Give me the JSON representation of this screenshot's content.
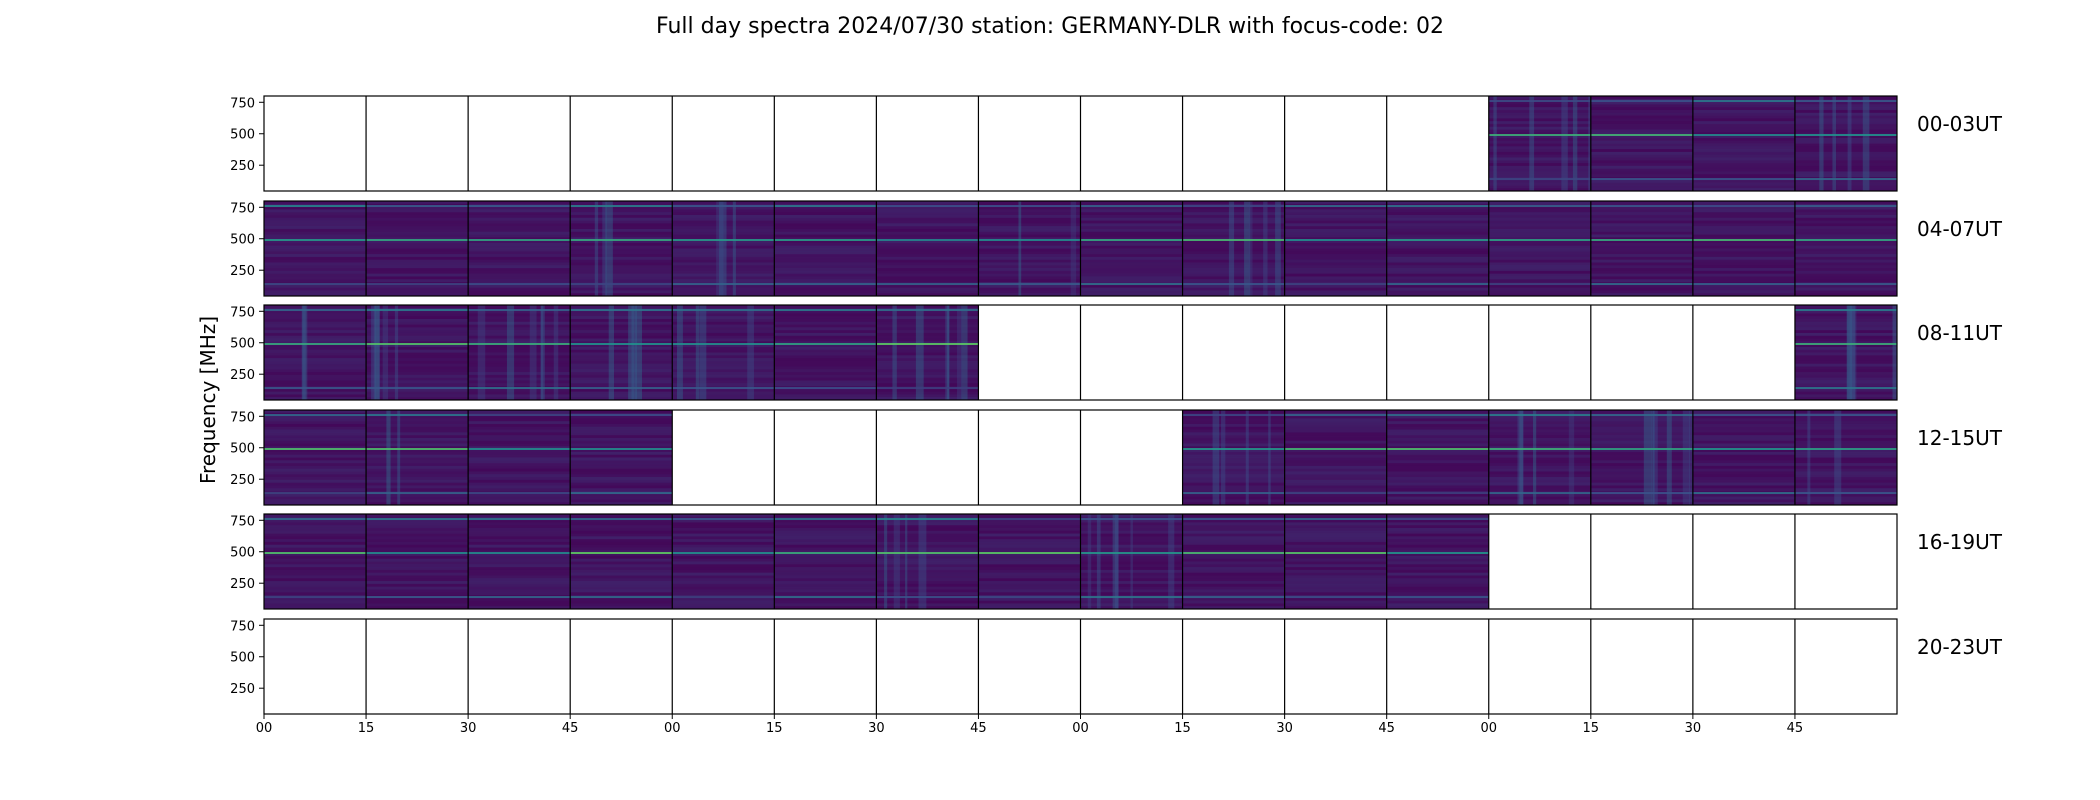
{
  "chart_data": {
    "type": "heatmap",
    "title": "Full day spectra 2024/07/30 station: GERMANY-DLR with focus-code: 02",
    "ylabel": "Frequency [MHz]",
    "y_ticks": [
      "250",
      "500",
      "750"
    ],
    "y_tick_values": [
      250,
      500,
      750
    ],
    "ylim": [
      45,
      800
    ],
    "x_tick_labels": [
      "00",
      "15",
      "30",
      "45",
      "00",
      "15",
      "30",
      "45",
      "00",
      "15",
      "30",
      "45",
      "00",
      "15",
      "30",
      "45"
    ],
    "colormap": [
      "#440154",
      "#3b528b",
      "#21918c",
      "#5ec962",
      "#fde725"
    ],
    "rows": [
      {
        "label": "00-03UT",
        "panels": [
          0,
          0,
          0,
          0,
          0,
          0,
          0,
          0,
          0,
          0,
          0,
          0,
          1,
          1,
          1,
          1
        ]
      },
      {
        "label": "04-07UT",
        "panels": [
          1,
          1,
          1,
          1,
          1,
          1,
          1,
          1,
          1,
          1,
          1,
          1,
          1,
          1,
          1,
          1
        ]
      },
      {
        "label": "08-11UT",
        "panels": [
          1,
          1,
          1,
          1,
          1,
          1,
          1,
          0,
          0,
          0,
          0,
          0,
          0,
          0,
          0,
          1
        ]
      },
      {
        "label": "12-15UT",
        "panels": [
          1,
          1,
          1,
          1,
          0,
          0,
          0,
          0,
          0,
          1,
          1,
          1,
          1,
          1,
          1,
          1
        ]
      },
      {
        "label": "16-19UT",
        "panels": [
          1,
          1,
          1,
          1,
          1,
          1,
          1,
          1,
          1,
          1,
          1,
          1,
          0,
          0,
          0,
          0
        ]
      },
      {
        "label": "20-23UT",
        "panels": [
          0,
          0,
          0,
          0,
          0,
          0,
          0,
          0,
          0,
          0,
          0,
          0,
          0,
          0,
          0,
          0
        ]
      }
    ]
  }
}
